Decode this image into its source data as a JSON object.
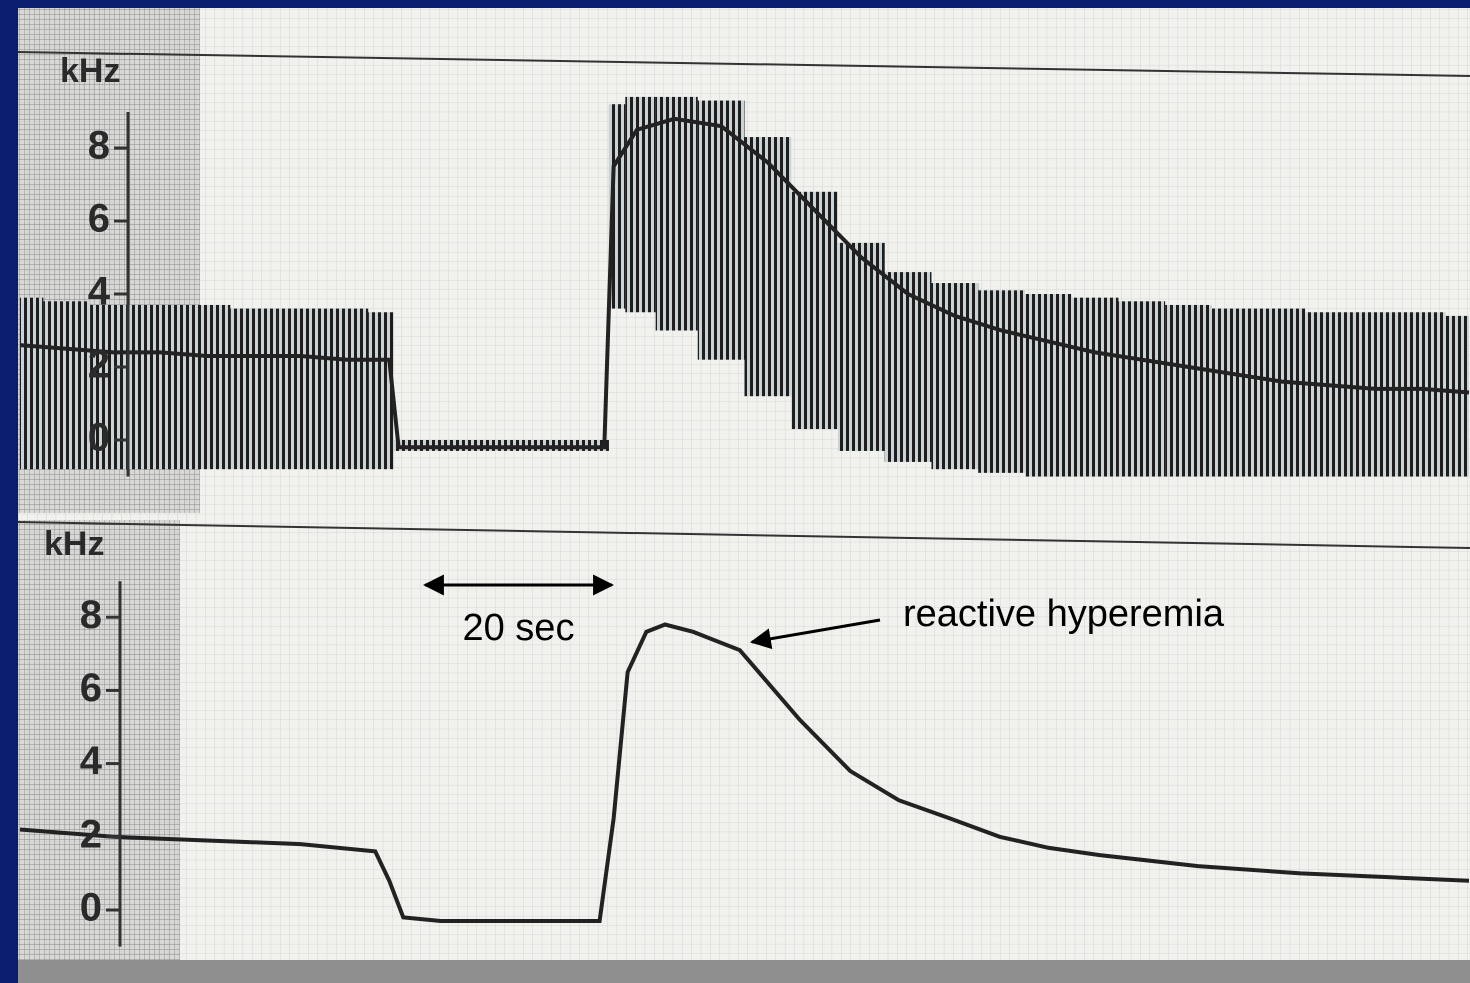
{
  "chart_data": [
    {
      "type": "range",
      "y_label": "kHz",
      "ylim": [
        -1,
        10
      ],
      "yticks": [
        0,
        2,
        4,
        6,
        8
      ],
      "xlim": [
        0,
        155
      ],
      "x": [
        0,
        5,
        10,
        15,
        20,
        25,
        30,
        35,
        39.5,
        40.5,
        45,
        50,
        55,
        60,
        62.5,
        63.5,
        66,
        70,
        75,
        80,
        85,
        90,
        95,
        100,
        105,
        110,
        115,
        120,
        125,
        130,
        135,
        140,
        145,
        150,
        155
      ],
      "high": [
        3.9,
        3.8,
        3.7,
        3.7,
        3.7,
        3.6,
        3.6,
        3.6,
        3.5,
        0,
        0,
        0,
        0,
        0,
        0,
        9.2,
        9.4,
        9.4,
        9.3,
        8.3,
        6.8,
        5.4,
        4.6,
        4.3,
        4.1,
        4.0,
        3.9,
        3.8,
        3.7,
        3.6,
        3.6,
        3.5,
        3.5,
        3.5,
        3.4
      ],
      "low": [
        -0.8,
        -0.8,
        -0.8,
        -0.8,
        -0.8,
        -0.8,
        -0.8,
        -0.8,
        -0.8,
        -0.3,
        -0.3,
        -0.3,
        -0.3,
        -0.3,
        -0.3,
        3.6,
        3.5,
        3.0,
        2.2,
        1.2,
        0.3,
        -0.3,
        -0.6,
        -0.8,
        -0.9,
        -1.0,
        -1.0,
        -1.0,
        -1.0,
        -1.0,
        -1.0,
        -1.0,
        -1.0,
        -1.0,
        -1.0
      ],
      "values": [
        2.6,
        2.5,
        2.4,
        2.4,
        2.3,
        2.3,
        2.3,
        2.2,
        2.2,
        -0.2,
        -0.2,
        -0.2,
        -0.2,
        -0.2,
        -0.2,
        7.5,
        8.5,
        8.8,
        8.6,
        7.6,
        6.3,
        5.0,
        4.0,
        3.4,
        3.0,
        2.7,
        2.4,
        2.2,
        2.0,
        1.8,
        1.6,
        1.5,
        1.4,
        1.4,
        1.3
      ],
      "color": "#222222"
    },
    {
      "type": "line",
      "y_label": "kHz",
      "ylim": [
        -1,
        10
      ],
      "yticks": [
        0,
        2,
        4,
        6,
        8
      ],
      "xlim": [
        0,
        155
      ],
      "x": [
        0,
        10,
        20,
        30,
        38,
        39.5,
        41,
        45,
        50,
        55,
        60,
        62,
        63.5,
        65,
        67,
        69,
        72,
        77,
        83.4,
        88.8,
        94,
        99.5,
        104.8,
        110,
        115.5,
        126,
        137,
        146,
        155
      ],
      "values": [
        2.2,
        2.0,
        1.9,
        1.8,
        1.6,
        0.8,
        -0.2,
        -0.3,
        -0.3,
        -0.3,
        -0.3,
        -0.3,
        2.5,
        6.5,
        7.6,
        7.8,
        7.6,
        7.1,
        5.2,
        3.8,
        3.0,
        2.5,
        2.0,
        1.7,
        1.5,
        1.2,
        1.0,
        0.9,
        0.8
      ],
      "color": "#222222",
      "scale_bar": {
        "value": 20,
        "label": "20 sec"
      },
      "annotation": "reactive hyperemia"
    }
  ]
}
